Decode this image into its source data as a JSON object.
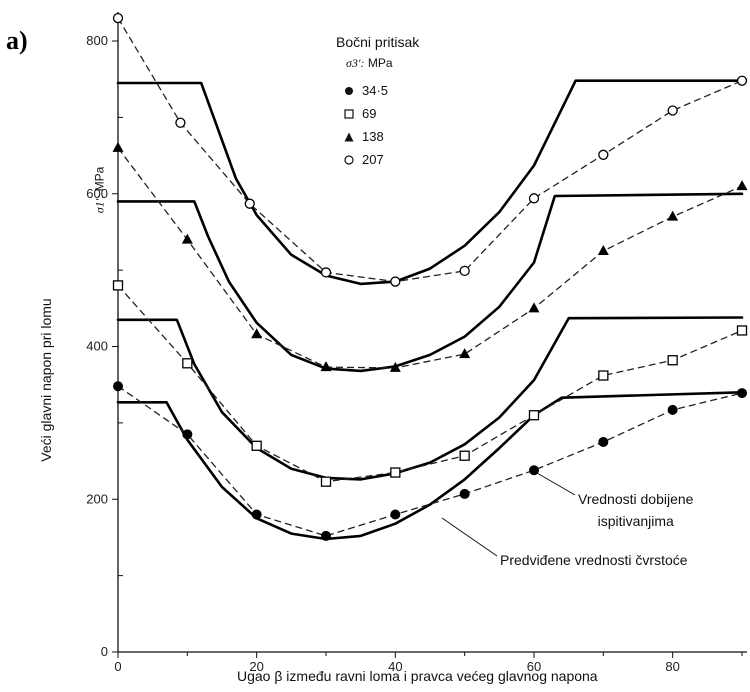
{
  "figure": {
    "panel_label": "a)",
    "legend_title": "Bočni pritisak",
    "legend_subtitle_symbol": "σ3':",
    "legend_subtitle_unit": "MPa",
    "y_axis_title": "Veći glavni napon pri lomu",
    "y_axis_symbol": "σ1':",
    "y_axis_unit": "MPa",
    "x_axis_title": "Ugao β  između ravni loma i pravca većeg glavnog napona",
    "annotation_measured_line1": "Vrednosti dobijene",
    "annotation_measured_line2": "ispitivanjima",
    "annotation_predicted": "Predviđene vrednosti čvrstoće"
  },
  "chart_data": {
    "type": "line",
    "xlim": [
      0,
      90
    ],
    "ylim": [
      0,
      840
    ],
    "x_ticks": [
      0,
      20,
      40,
      60,
      80
    ],
    "y_ticks": [
      0,
      200,
      400,
      600,
      800
    ],
    "grid": false,
    "legend_position": "top-center",
    "series": [
      {
        "name": "34·5",
        "marker": "filled-circle",
        "measured": {
          "x": [
            0,
            10,
            20,
            30,
            40,
            50,
            60,
            70,
            80,
            90
          ],
          "y": [
            348,
            285,
            180,
            152,
            180,
            207,
            238,
            275,
            317,
            339
          ]
        },
        "predicted": {
          "x": [
            0,
            7,
            10,
            15,
            20,
            25,
            30,
            35,
            40,
            45,
            50,
            55,
            60,
            64,
            90
          ],
          "y": [
            327,
            327,
            278,
            216,
            175,
            155,
            148,
            152,
            168,
            193,
            226,
            267,
            310,
            333,
            340
          ]
        }
      },
      {
        "name": "69",
        "marker": "open-square",
        "measured": {
          "x": [
            0,
            10,
            20,
            30,
            40,
            50,
            60,
            70,
            80,
            90
          ],
          "y": [
            480,
            378,
            270,
            223,
            235,
            257,
            310,
            362,
            382,
            421
          ]
        },
        "predicted": {
          "x": [
            0,
            8.5,
            11,
            15,
            20,
            25,
            30,
            35,
            40,
            45,
            50,
            55,
            60,
            65,
            90
          ],
          "y": [
            435,
            435,
            377,
            314,
            267,
            240,
            228,
            226,
            234,
            248,
            272,
            307,
            356,
            437,
            438
          ]
        }
      },
      {
        "name": "138",
        "marker": "filled-triangle",
        "measured": {
          "x": [
            0,
            10,
            20,
            30,
            40,
            50,
            60,
            70,
            80,
            90
          ],
          "y": [
            660,
            540,
            416,
            373,
            372,
            390,
            450,
            525,
            570,
            610
          ]
        },
        "predicted": {
          "x": [
            0,
            11,
            13,
            16,
            20,
            25,
            30,
            35,
            40,
            45,
            50,
            55,
            60,
            63,
            90
          ],
          "y": [
            590,
            590,
            544,
            485,
            431,
            389,
            371,
            368,
            374,
            389,
            413,
            452,
            510,
            597,
            600
          ]
        }
      },
      {
        "name": "207",
        "marker": "open-circle",
        "measured": {
          "x": [
            0,
            9,
            19,
            30,
            40,
            50,
            60,
            70,
            80,
            90
          ],
          "y": [
            830,
            693,
            587,
            497,
            485,
            499,
            594,
            651,
            709,
            748
          ]
        },
        "predicted": {
          "x": [
            0,
            12,
            14,
            17,
            20,
            25,
            30,
            35,
            40,
            45,
            50,
            55,
            60,
            66,
            90
          ],
          "y": [
            745,
            745,
            695,
            620,
            572,
            520,
            493,
            482,
            485,
            502,
            532,
            576,
            637,
            748,
            748
          ]
        }
      }
    ]
  }
}
